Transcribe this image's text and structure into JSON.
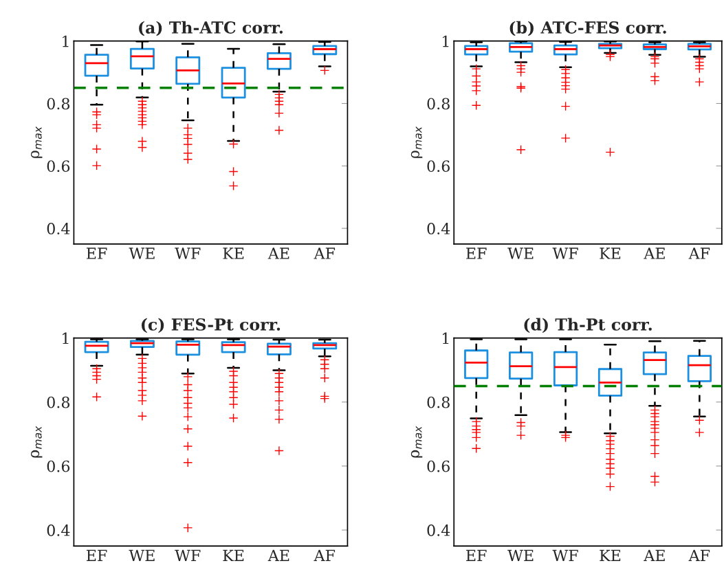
{
  "chart_data": [
    {
      "type": "box",
      "title": "(a) Th-ATC corr.",
      "ylabel": "ρ$_{max}$",
      "categories": [
        "EF",
        "WE",
        "WF",
        "KE",
        "AE",
        "AF"
      ],
      "ylim": [
        0.35,
        1.0
      ],
      "yticks": [
        0.4,
        0.6,
        0.8,
        1
      ],
      "grid": false,
      "ref_lines": [
        {
          "axis": "y",
          "value": 0.85,
          "color": "#008000",
          "line_style": "dashed"
        }
      ],
      "boxes": [
        {
          "low": 0.796,
          "q1": 0.889,
          "median": 0.929,
          "q3": 0.956,
          "high": 0.987,
          "outliers": [
            0.773,
            0.764,
            0.732,
            0.721,
            0.654,
            0.601
          ]
        },
        {
          "low": 0.819,
          "q1": 0.912,
          "median": 0.951,
          "q3": 0.975,
          "high": 0.999,
          "outliers": [
            0.807,
            0.796,
            0.786,
            0.775,
            0.764,
            0.754,
            0.743,
            0.732,
            0.679,
            0.659
          ]
        },
        {
          "low": 0.746,
          "q1": 0.863,
          "median": 0.906,
          "q3": 0.948,
          "high": 0.991,
          "outliers": [
            0.721,
            0.7,
            0.688,
            0.669,
            0.641,
            0.621
          ]
        },
        {
          "low": 0.68,
          "q1": 0.819,
          "median": 0.864,
          "q3": 0.914,
          "high": 0.975,
          "outliers": [
            0.67,
            0.582,
            0.536
          ]
        },
        {
          "low": 0.838,
          "q1": 0.911,
          "median": 0.943,
          "q3": 0.961,
          "high": 0.99,
          "outliers": [
            0.829,
            0.818,
            0.807,
            0.796,
            0.769,
            0.714
          ]
        },
        {
          "low": 0.919,
          "q1": 0.958,
          "median": 0.974,
          "q3": 0.984,
          "high": 0.997,
          "outliers": [
            0.906
          ]
        }
      ]
    },
    {
      "type": "box",
      "title": "(b) ATC-FES corr.",
      "ylabel": "ρ$_{max}$",
      "categories": [
        "EF",
        "WE",
        "WF",
        "KE",
        "AE",
        "AF"
      ],
      "ylim": [
        0.35,
        1.0
      ],
      "yticks": [
        0.4,
        0.6,
        0.8,
        1
      ],
      "grid": false,
      "boxes": [
        {
          "low": 0.919,
          "q1": 0.957,
          "median": 0.974,
          "q3": 0.984,
          "high": 0.996,
          "outliers": [
            0.911,
            0.888,
            0.869,
            0.856,
            0.841,
            0.794
          ]
        },
        {
          "low": 0.932,
          "q1": 0.966,
          "median": 0.981,
          "q3": 0.993,
          "high": 0.999,
          "outliers": [
            0.921,
            0.911,
            0.9,
            0.854,
            0.849,
            0.652
          ]
        },
        {
          "low": 0.916,
          "q1": 0.957,
          "median": 0.974,
          "q3": 0.986,
          "high": 0.997,
          "outliers": [
            0.909,
            0.896,
            0.882,
            0.868,
            0.857,
            0.846,
            0.791,
            0.689
          ]
        },
        {
          "low": 0.962,
          "q1": 0.977,
          "median": 0.986,
          "q3": 0.991,
          "high": 0.999,
          "outliers": [
            0.957,
            0.95,
            0.644
          ]
        },
        {
          "low": 0.956,
          "q1": 0.974,
          "median": 0.981,
          "q3": 0.989,
          "high": 0.996,
          "outliers": [
            0.95,
            0.943,
            0.929,
            0.886,
            0.873
          ]
        },
        {
          "low": 0.95,
          "q1": 0.973,
          "median": 0.983,
          "q3": 0.991,
          "high": 0.996,
          "outliers": [
            0.943,
            0.932,
            0.921,
            0.911,
            0.869
          ]
        }
      ]
    },
    {
      "type": "box",
      "title": "(c) FES-Pt corr.",
      "ylabel": "ρ$_{max}$",
      "categories": [
        "EF",
        "WE",
        "WF",
        "KE",
        "AE",
        "AF"
      ],
      "ylim": [
        0.35,
        1.0
      ],
      "yticks": [
        0.4,
        0.6,
        0.8,
        1
      ],
      "grid": false,
      "boxes": [
        {
          "low": 0.913,
          "q1": 0.956,
          "median": 0.976,
          "q3": 0.988,
          "high": 0.996,
          "outliers": [
            0.904,
            0.893,
            0.882,
            0.871,
            0.816
          ]
        },
        {
          "low": 0.948,
          "q1": 0.972,
          "median": 0.984,
          "q3": 0.991,
          "high": 0.996,
          "outliers": [
            0.936,
            0.921,
            0.907,
            0.893,
            0.875,
            0.861,
            0.836,
            0.821,
            0.804,
            0.756
          ]
        },
        {
          "low": 0.889,
          "q1": 0.948,
          "median": 0.979,
          "q3": 0.989,
          "high": 0.996,
          "outliers": [
            0.879,
            0.854,
            0.836,
            0.814,
            0.796,
            0.782,
            0.754,
            0.716,
            0.662,
            0.611,
            0.407
          ]
        },
        {
          "low": 0.907,
          "q1": 0.956,
          "median": 0.978,
          "q3": 0.987,
          "high": 0.996,
          "outliers": [
            0.896,
            0.882,
            0.861,
            0.846,
            0.832,
            0.814,
            0.793,
            0.75
          ]
        },
        {
          "low": 0.899,
          "q1": 0.949,
          "median": 0.973,
          "q3": 0.982,
          "high": 0.995,
          "outliers": [
            0.889,
            0.875,
            0.861,
            0.846,
            0.832,
            0.804,
            0.775,
            0.746,
            0.648
          ]
        },
        {
          "low": 0.943,
          "q1": 0.967,
          "median": 0.978,
          "q3": 0.984,
          "high": 0.995,
          "outliers": [
            0.932,
            0.918,
            0.904,
            0.875,
            0.818,
            0.811
          ]
        }
      ]
    },
    {
      "type": "box",
      "title": "(d) Th-Pt corr.",
      "ylabel": "ρ$_{max}$",
      "categories": [
        "EF",
        "WE",
        "WF",
        "KE",
        "AE",
        "AF"
      ],
      "ylim": [
        0.35,
        1.0
      ],
      "yticks": [
        0.4,
        0.6,
        0.8,
        1
      ],
      "grid": false,
      "ref_lines": [
        {
          "axis": "y",
          "value": 0.85,
          "color": "#008000",
          "line_style": "dashed"
        }
      ],
      "boxes": [
        {
          "low": 0.749,
          "q1": 0.875,
          "median": 0.923,
          "q3": 0.961,
          "high": 0.996,
          "outliers": [
            0.739,
            0.725,
            0.714,
            0.705,
            0.689,
            0.655
          ]
        },
        {
          "low": 0.759,
          "q1": 0.873,
          "median": 0.912,
          "q3": 0.955,
          "high": 0.996,
          "outliers": [
            0.736,
            0.725,
            0.696
          ]
        },
        {
          "low": 0.706,
          "q1": 0.852,
          "median": 0.909,
          "q3": 0.956,
          "high": 0.996,
          "outliers": [
            0.696,
            0.689
          ]
        },
        {
          "low": 0.702,
          "q1": 0.82,
          "median": 0.861,
          "q3": 0.903,
          "high": 0.979,
          "outliers": [
            0.693,
            0.679,
            0.668,
            0.654,
            0.639,
            0.621,
            0.607,
            0.593,
            0.575,
            0.536
          ]
        },
        {
          "low": 0.788,
          "q1": 0.887,
          "median": 0.931,
          "q3": 0.955,
          "high": 0.99,
          "outliers": [
            0.775,
            0.764,
            0.754,
            0.739,
            0.729,
            0.718,
            0.705,
            0.682,
            0.664,
            0.639,
            0.568,
            0.55
          ]
        },
        {
          "low": 0.755,
          "q1": 0.865,
          "median": 0.915,
          "q3": 0.944,
          "high": 0.991,
          "outliers": [
            0.743,
            0.705
          ]
        }
      ]
    }
  ]
}
